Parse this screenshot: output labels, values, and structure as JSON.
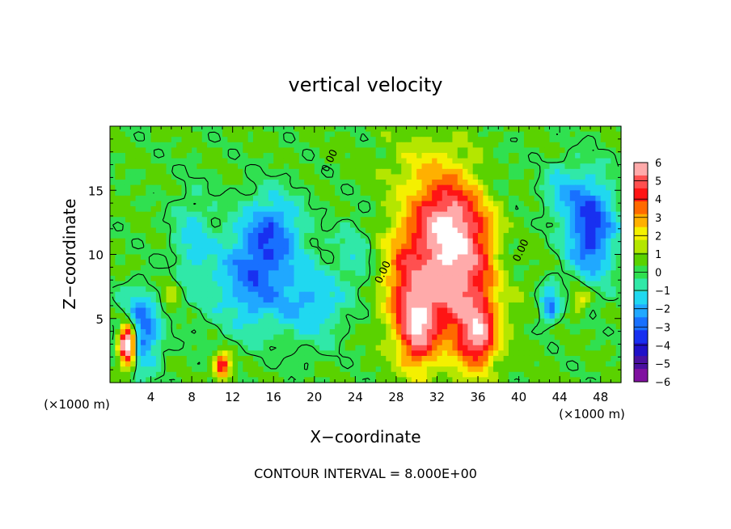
{
  "chart_data": {
    "type": "heatmap",
    "title": "vertical velocity",
    "xlabel": "X−coordinate",
    "ylabel": "Z−coordinate",
    "x_unit_left": "(×1000 m)",
    "x_unit_right": "(×1000 m)",
    "xlim": [
      0,
      50
    ],
    "ylim": [
      0,
      20
    ],
    "x_ticks": [
      4,
      8,
      12,
      16,
      20,
      24,
      28,
      32,
      36,
      40,
      44,
      48
    ],
    "y_ticks": [
      5,
      10,
      15
    ],
    "colorbar": {
      "ticks": [
        "6",
        "5",
        "4",
        "3",
        "2",
        "1",
        "0",
        "−1",
        "−2",
        "−3",
        "−4",
        "−5",
        "−6"
      ],
      "colors": [
        "#ffaaaa",
        "#ff5050",
        "#ff1414",
        "#ff6a00",
        "#ffb000",
        "#f4f000",
        "#b4e600",
        "#5ad200",
        "#30e050",
        "#30e8a8",
        "#20d8f0",
        "#20a8ff",
        "#1870ff",
        "#1830f0",
        "#2010c8",
        "#4a10a0",
        "#8010a0"
      ]
    },
    "contour_labels": [
      "0.00",
      "0.00",
      "0.00"
    ],
    "footer": "CONTOUR INTERVAL = 8.000E+00",
    "features": [
      {
        "kind": "updraft",
        "x": 33.5,
        "z": 8.5,
        "sx": 4.5,
        "sz": 5.5,
        "amp": 5.5
      },
      {
        "kind": "updraft",
        "x": 33,
        "z": 13,
        "sx": 3.5,
        "sz": 3,
        "amp": 3
      },
      {
        "kind": "updraft",
        "x": 30,
        "z": 4,
        "sx": 1.8,
        "sz": 3,
        "amp": 4
      },
      {
        "kind": "updraft",
        "x": 36,
        "z": 3.5,
        "sx": 1.8,
        "sz": 2.5,
        "amp": 4
      },
      {
        "kind": "updraft",
        "x": 28.5,
        "z": 8,
        "sx": 2,
        "sz": 4,
        "amp": 2
      },
      {
        "kind": "updraft",
        "x": 31,
        "z": 17,
        "sx": 4,
        "sz": 2.5,
        "amp": 1.2
      },
      {
        "kind": "updraft",
        "x": 1.7,
        "z": 3,
        "sx": 0.8,
        "sz": 1.6,
        "amp": 9
      },
      {
        "kind": "updraft",
        "x": 11,
        "z": 1.3,
        "sx": 0.8,
        "sz": 1,
        "amp": 4.5
      },
      {
        "kind": "updraft",
        "x": 46,
        "z": 6.5,
        "sx": 0.9,
        "sz": 1.2,
        "amp": 2
      },
      {
        "kind": "updraft",
        "x": 6,
        "z": 7,
        "sx": 1,
        "sz": 1.5,
        "amp": 1.2
      },
      {
        "kind": "downdraft",
        "x": 14,
        "z": 8,
        "sx": 4,
        "sz": 4,
        "amp": -3
      },
      {
        "kind": "downdraft",
        "x": 16,
        "z": 12,
        "sx": 3,
        "sz": 3,
        "amp": -2.5
      },
      {
        "kind": "downdraft",
        "x": 20,
        "z": 6,
        "sx": 3,
        "sz": 3,
        "amp": -2
      },
      {
        "kind": "downdraft",
        "x": 3,
        "z": 4,
        "sx": 2,
        "sz": 3,
        "amp": -3.5
      },
      {
        "kind": "downdraft",
        "x": 47,
        "z": 12,
        "sx": 2.5,
        "sz": 4,
        "amp": -4
      },
      {
        "kind": "downdraft",
        "x": 43,
        "z": 6,
        "sx": 1,
        "sz": 1.5,
        "amp": -3
      },
      {
        "kind": "downdraft",
        "x": 8,
        "z": 11,
        "sx": 2,
        "sz": 4,
        "amp": -1.5
      },
      {
        "kind": "downdraft",
        "x": 44,
        "z": 15,
        "sx": 2,
        "sz": 2,
        "amp": -1.5
      },
      {
        "kind": "downdraft",
        "x": 24,
        "z": 10,
        "sx": 2,
        "sz": 3,
        "amp": -1.2
      },
      {
        "kind": "downdraft",
        "x": 39,
        "z": 10,
        "sx": 1.5,
        "sz": 3,
        "amp": -1
      },
      {
        "kind": "downdraft",
        "x": 38,
        "z": 16,
        "sx": 2,
        "sz": 2,
        "amp": -0.6
      }
    ]
  }
}
